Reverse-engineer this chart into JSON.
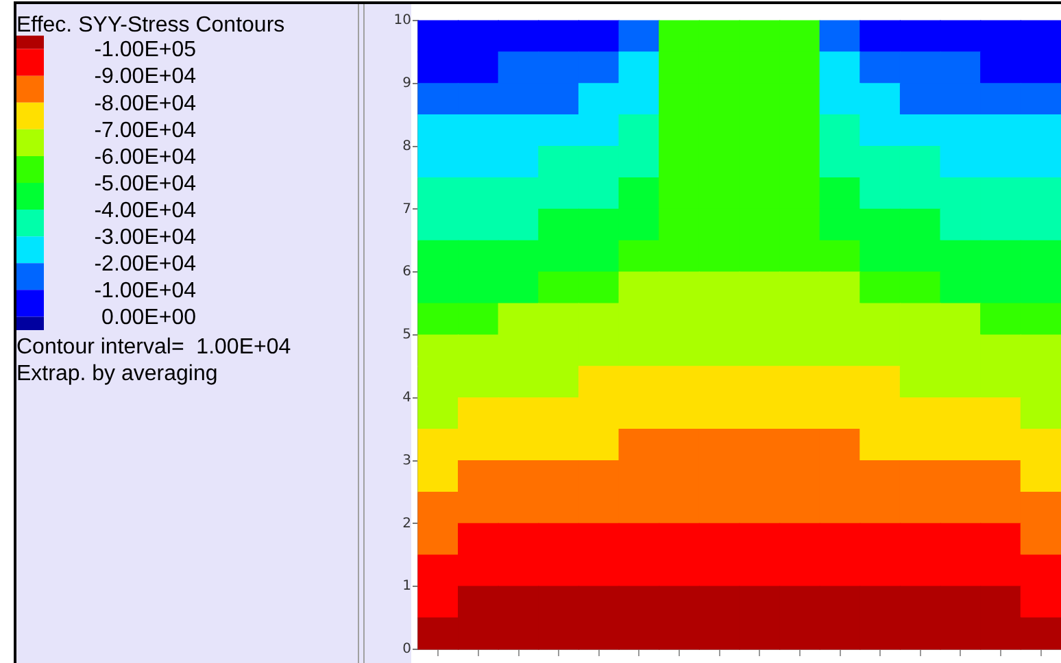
{
  "chart_data": {
    "type": "heatmap",
    "clabel": "Effec. SYY-Stress Contours",
    "categories": [
      null,
      null,
      null,
      null,
      null,
      null,
      null,
      null,
      null,
      null,
      null,
      null,
      null,
      null,
      null,
      null
    ],
    "ylim": [
      0,
      10
    ],
    "yticks": [
      0,
      1,
      2,
      3,
      4,
      5,
      6,
      7,
      8,
      9,
      10
    ],
    "tick_labels": "y",
    "clim": [
      -105000,
      5000
    ],
    "cticks": [
      {
        "value": -100000,
        "label": "-1.00E+05"
      },
      {
        "value": -90000,
        "label": "-9.00E+04"
      },
      {
        "value": -80000,
        "label": "-8.00E+04"
      },
      {
        "value": -70000,
        "label": "-7.00E+04"
      },
      {
        "value": -60000,
        "label": "-6.00E+04"
      },
      {
        "value": -50000,
        "label": "-5.00E+04"
      },
      {
        "value": -40000,
        "label": "-4.00E+04"
      },
      {
        "value": -30000,
        "label": "-3.00E+04"
      },
      {
        "value": -20000,
        "label": "-2.00E+04"
      },
      {
        "value": -10000,
        "label": "-1.00E+04"
      },
      {
        "value": 0,
        "label": " 0.00E+00"
      }
    ],
    "annotations": [
      "Contour interval=  1.00E+04",
      "Extrap. by averaging"
    ],
    "cells": [
      [
        -5000,
        -5000,
        -5000,
        -5000,
        -5000,
        -15000,
        -55000,
        -55000,
        -55000,
        -55000,
        -15000,
        -5000,
        -5000,
        -5000,
        -5000,
        -5000
      ],
      [
        -5000,
        -5000,
        -15000,
        -15000,
        -15000,
        -25000,
        -55000,
        -55000,
        -55000,
        -55000,
        -25000,
        -15000,
        -15000,
        -15000,
        -5000,
        -5000
      ],
      [
        -15000,
        -15000,
        -15000,
        -15000,
        -25000,
        -25000,
        -55000,
        -55000,
        -55000,
        -55000,
        -25000,
        -25000,
        -15000,
        -15000,
        -15000,
        -15000
      ],
      [
        -25000,
        -25000,
        -25000,
        -25000,
        -25000,
        -35000,
        -55000,
        -55000,
        -55000,
        -55000,
        -35000,
        -25000,
        -25000,
        -25000,
        -25000,
        -25000
      ],
      [
        -25000,
        -25000,
        -25000,
        -35000,
        -35000,
        -35000,
        -55000,
        -55000,
        -55000,
        -55000,
        -35000,
        -35000,
        -35000,
        -25000,
        -25000,
        -25000
      ],
      [
        -35000,
        -35000,
        -35000,
        -35000,
        -35000,
        -45000,
        -55000,
        -55000,
        -55000,
        -55000,
        -45000,
        -35000,
        -35000,
        -35000,
        -35000,
        -35000
      ],
      [
        -35000,
        -35000,
        -35000,
        -45000,
        -45000,
        -45000,
        -55000,
        -55000,
        -55000,
        -55000,
        -45000,
        -45000,
        -45000,
        -35000,
        -35000,
        -35000
      ],
      [
        -45000,
        -45000,
        -45000,
        -45000,
        -45000,
        -55000,
        -55000,
        -55000,
        -55000,
        -55000,
        -55000,
        -45000,
        -45000,
        -45000,
        -45000,
        -45000
      ],
      [
        -45000,
        -45000,
        -45000,
        -55000,
        -55000,
        -65000,
        -65000,
        -65000,
        -65000,
        -65000,
        -65000,
        -55000,
        -55000,
        -45000,
        -45000,
        -45000
      ],
      [
        -55000,
        -55000,
        -65000,
        -65000,
        -65000,
        -65000,
        -65000,
        -65000,
        -65000,
        -65000,
        -65000,
        -65000,
        -65000,
        -65000,
        -55000,
        -55000
      ],
      [
        -65000,
        -65000,
        -65000,
        -65000,
        -65000,
        -65000,
        -65000,
        -65000,
        -65000,
        -65000,
        -65000,
        -65000,
        -65000,
        -65000,
        -65000,
        -65000
      ],
      [
        -65000,
        -65000,
        -65000,
        -65000,
        -75000,
        -75000,
        -75000,
        -75000,
        -75000,
        -75000,
        -75000,
        -75000,
        -65000,
        -65000,
        -65000,
        -65000
      ],
      [
        -65000,
        -75000,
        -75000,
        -75000,
        -75000,
        -75000,
        -75000,
        -75000,
        -75000,
        -75000,
        -75000,
        -75000,
        -75000,
        -75000,
        -75000,
        -65000
      ],
      [
        -75000,
        -75000,
        -75000,
        -75000,
        -75000,
        -85000,
        -85000,
        -85000,
        -85000,
        -85000,
        -85000,
        -75000,
        -75000,
        -75000,
        -75000,
        -75000
      ],
      [
        -75000,
        -85000,
        -85000,
        -85000,
        -85000,
        -85000,
        -85000,
        -85000,
        -85000,
        -85000,
        -85000,
        -85000,
        -85000,
        -85000,
        -85000,
        -75000
      ],
      [
        -85000,
        -85000,
        -85000,
        -85000,
        -85000,
        -85000,
        -85000,
        -85000,
        -85000,
        -85000,
        -85000,
        -85000,
        -85000,
        -85000,
        -85000,
        -85000
      ],
      [
        -85000,
        -95000,
        -95000,
        -95000,
        -95000,
        -95000,
        -95000,
        -95000,
        -95000,
        -95000,
        -95000,
        -95000,
        -95000,
        -95000,
        -95000,
        -85000
      ],
      [
        -95000,
        -95000,
        -95000,
        -95000,
        -95000,
        -95000,
        -95000,
        -95000,
        -95000,
        -95000,
        -95000,
        -95000,
        -95000,
        -95000,
        -95000,
        -95000
      ],
      [
        -95000,
        -105000,
        -105000,
        -105000,
        -105000,
        -105000,
        -105000,
        -105000,
        -105000,
        -105000,
        -105000,
        -105000,
        -105000,
        -105000,
        -105000,
        -95000
      ],
      [
        -105000,
        -105000,
        -105000,
        -105000,
        -105000,
        -105000,
        -105000,
        -105000,
        -105000,
        -105000,
        -105000,
        -105000,
        -105000,
        -105000,
        -105000,
        -105000
      ]
    ]
  }
}
